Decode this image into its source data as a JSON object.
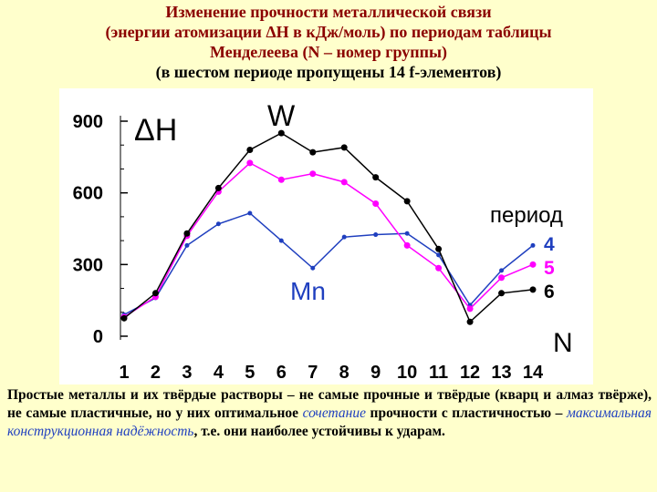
{
  "title": {
    "line1": "Изменение прочности металлической связи",
    "line2": "(энергии атомизации ΔH в кДж/моль) по периодам таблицы",
    "line3": "Менделеева (N – номер группы)",
    "line4": "(в шестом периоде пропущены 14 f-элементов)"
  },
  "chart_data": {
    "type": "line",
    "x": [
      1,
      2,
      3,
      4,
      5,
      6,
      7,
      8,
      9,
      10,
      11,
      12,
      13,
      14
    ],
    "xlabel": "N",
    "ylabel": "ΔH",
    "ylim": [
      0,
      900
    ],
    "yticks": [
      0,
      300,
      600,
      900
    ],
    "legend_title": "период",
    "legend_position": "right",
    "annotations": [
      {
        "text": "W",
        "x": 6,
        "y": 850,
        "color": "#000000"
      },
      {
        "text": "Mn",
        "x": 7,
        "y": 280,
        "color": "#1f3fbf"
      }
    ],
    "series": [
      {
        "name": "4",
        "color": "#1f3fbf",
        "values": [
          90,
          160,
          380,
          470,
          515,
          400,
          285,
          415,
          425,
          430,
          340,
          130,
          275,
          380
        ]
      },
      {
        "name": "5",
        "color": "#ff00ff",
        "values": [
          80,
          165,
          420,
          605,
          725,
          655,
          680,
          645,
          555,
          380,
          285,
          115,
          245,
          300
        ]
      },
      {
        "name": "6",
        "color": "#000000",
        "values": [
          75,
          180,
          430,
          620,
          780,
          850,
          770,
          790,
          665,
          565,
          365,
          60,
          180,
          195
        ]
      }
    ]
  },
  "caption": {
    "part1": "Простые металлы и их твёрдые растворы – не самые прочные и твёрдые (кварц и алмаз твёрже), не самые пластичные, но у них оптимальное ",
    "hl1": "сочетание",
    "part2": " прочности с пластичностью – ",
    "hl2": "максимальная конструкционная надёжность",
    "part3": ", т.е. они наиболее устойчивы к ударам."
  }
}
